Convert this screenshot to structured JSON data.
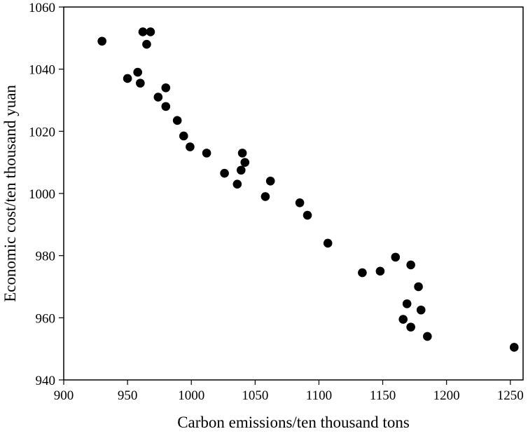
{
  "chart_data": {
    "type": "scatter",
    "title": "",
    "xlabel": "Carbon emissions/ten thousand tons",
    "ylabel": "Economic cost/ten thousand yuan",
    "xlim": [
      900,
      1260
    ],
    "ylim": [
      940,
      1060
    ],
    "xticks": [
      900,
      950,
      1000,
      1050,
      1100,
      1150,
      1200,
      1250
    ],
    "yticks": [
      940,
      960,
      980,
      1000,
      1020,
      1040,
      1060
    ],
    "grid": false,
    "legend": "none",
    "marker_color": "#000000",
    "points": [
      {
        "x": 930,
        "y": 1049
      },
      {
        "x": 962,
        "y": 1052
      },
      {
        "x": 968,
        "y": 1052
      },
      {
        "x": 965,
        "y": 1048
      },
      {
        "x": 958,
        "y": 1039
      },
      {
        "x": 950,
        "y": 1037
      },
      {
        "x": 960,
        "y": 1035.5
      },
      {
        "x": 980,
        "y": 1034
      },
      {
        "x": 974,
        "y": 1031
      },
      {
        "x": 980,
        "y": 1028
      },
      {
        "x": 989,
        "y": 1023.5
      },
      {
        "x": 994,
        "y": 1018.5
      },
      {
        "x": 999,
        "y": 1015
      },
      {
        "x": 1012,
        "y": 1013
      },
      {
        "x": 1040,
        "y": 1013
      },
      {
        "x": 1042,
        "y": 1010
      },
      {
        "x": 1039,
        "y": 1007.5
      },
      {
        "x": 1026,
        "y": 1006.5
      },
      {
        "x": 1036,
        "y": 1003
      },
      {
        "x": 1062,
        "y": 1004
      },
      {
        "x": 1058,
        "y": 999
      },
      {
        "x": 1085,
        "y": 997
      },
      {
        "x": 1091,
        "y": 993
      },
      {
        "x": 1107,
        "y": 984
      },
      {
        "x": 1160,
        "y": 979.5
      },
      {
        "x": 1172,
        "y": 977
      },
      {
        "x": 1148,
        "y": 975
      },
      {
        "x": 1134,
        "y": 974.5
      },
      {
        "x": 1178,
        "y": 970
      },
      {
        "x": 1169,
        "y": 964.5
      },
      {
        "x": 1180,
        "y": 962.5
      },
      {
        "x": 1166,
        "y": 959.5
      },
      {
        "x": 1172,
        "y": 957
      },
      {
        "x": 1185,
        "y": 954
      },
      {
        "x": 1253,
        "y": 950.5
      }
    ]
  }
}
